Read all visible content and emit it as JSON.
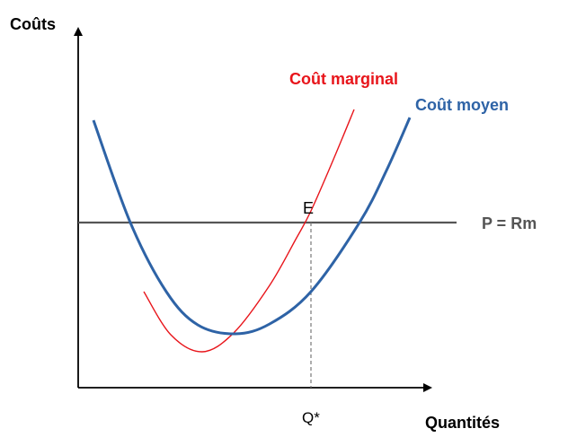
{
  "chart_data": {
    "type": "line",
    "x_axis_label": "Quantités",
    "y_axis_label": "Coûts",
    "series": [
      {
        "name": "Coût marginal",
        "color": "#e8151b",
        "points": [
          [
            160,
            325
          ],
          [
            190,
            373
          ],
          [
            225,
            392
          ],
          [
            260,
            371
          ],
          [
            300,
            318
          ],
          [
            330,
            265
          ],
          [
            346,
            235
          ],
          [
            370,
            180
          ],
          [
            394,
            122
          ]
        ]
      },
      {
        "name": "Coût moyen",
        "color": "#2e63a6",
        "points": [
          [
            104,
            134
          ],
          [
            145,
            248
          ],
          [
            185,
            325
          ],
          [
            220,
            362
          ],
          [
            262,
            372
          ],
          [
            300,
            361
          ],
          [
            346,
            325
          ],
          [
            400,
            248
          ],
          [
            430,
            190
          ],
          [
            456,
            131
          ]
        ]
      }
    ],
    "price_line": {
      "label": "P = Rm",
      "color": "#555555",
      "y": 248
    },
    "equilibrium": {
      "point_label": "E",
      "quantity_label": "Q*",
      "x": 346,
      "y": 248
    },
    "colors": {
      "axis": "#000000",
      "text": "#000000",
      "guide": "#777777"
    }
  }
}
